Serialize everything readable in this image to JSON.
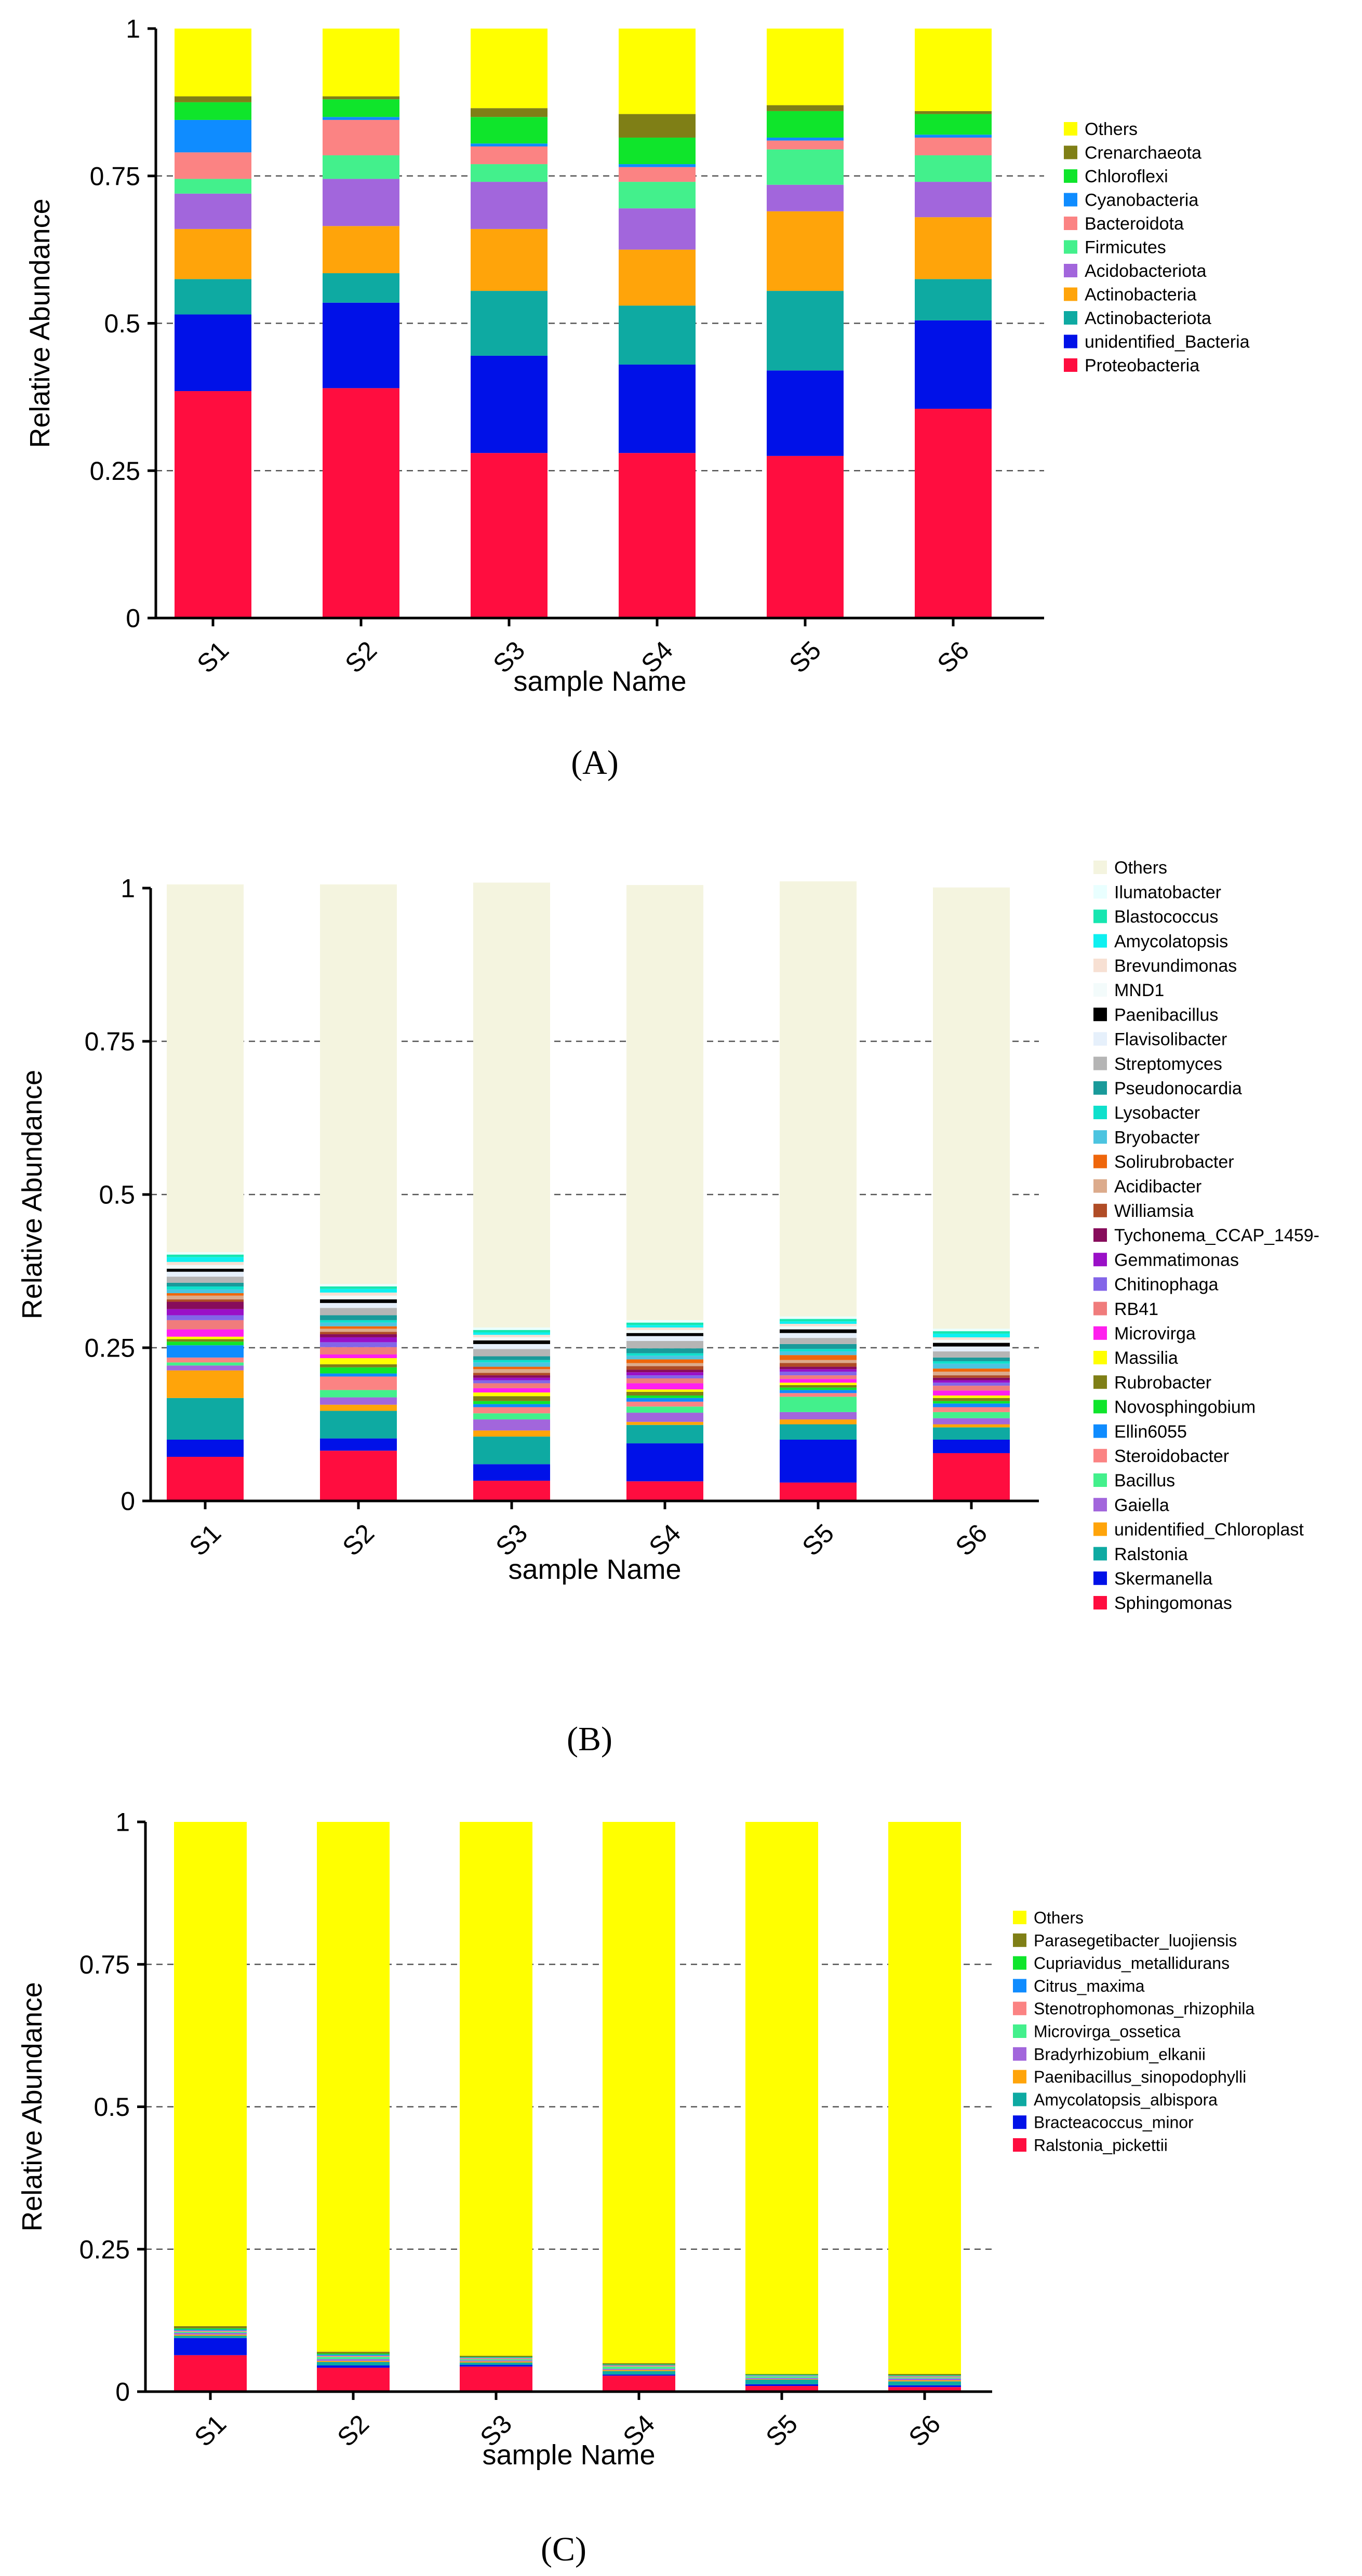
{
  "chart_data": [
    {
      "id": "A",
      "type": "bar",
      "stacked": true,
      "panel_label": "(A)",
      "panel_letter": "A",
      "xlabel": "sample Name",
      "ylabel": "Relative Abundance",
      "ylim": [
        0,
        1
      ],
      "yticks": [
        0,
        0.25,
        0.5,
        0.75,
        1
      ],
      "ytick_labels": [
        "0",
        "0.25",
        "0.5",
        "0.75",
        "1"
      ],
      "grid": "dashed horizontal at 0.25, 0.5, 0.75",
      "legend_position": "right",
      "categories": [
        "S1",
        "S2",
        "S3",
        "S4",
        "S5",
        "S6"
      ],
      "series": [
        {
          "name": "Proteobacteria",
          "color": "#ff0d3f",
          "values": [
            0.385,
            0.39,
            0.28,
            0.28,
            0.275,
            0.355
          ]
        },
        {
          "name": "unidentified_Bacteria",
          "color": "#0011e8",
          "values": [
            0.13,
            0.145,
            0.165,
            0.15,
            0.145,
            0.15
          ]
        },
        {
          "name": "Actinobacteriota",
          "color": "#0eaaa2",
          "values": [
            0.06,
            0.05,
            0.11,
            0.1,
            0.135,
            0.07
          ]
        },
        {
          "name": "Actinobacteria",
          "color": "#ffa40a",
          "values": [
            0.085,
            0.08,
            0.105,
            0.095,
            0.135,
            0.105
          ]
        },
        {
          "name": "Acidobacteriota",
          "color": "#a266dc",
          "values": [
            0.06,
            0.08,
            0.08,
            0.07,
            0.045,
            0.06
          ]
        },
        {
          "name": "Firmicutes",
          "color": "#43f08c",
          "values": [
            0.025,
            0.04,
            0.03,
            0.045,
            0.06,
            0.045
          ]
        },
        {
          "name": "Bacteroidota",
          "color": "#fb8383",
          "values": [
            0.045,
            0.06,
            0.03,
            0.025,
            0.015,
            0.03
          ]
        },
        {
          "name": "Cyanobacteria",
          "color": "#0f8cff",
          "values": [
            0.055,
            0.005,
            0.005,
            0.005,
            0.005,
            0.005
          ]
        },
        {
          "name": "Chloroflexi",
          "color": "#0fe52b",
          "values": [
            0.03,
            0.03,
            0.045,
            0.045,
            0.045,
            0.035
          ]
        },
        {
          "name": "Crenarchaeota",
          "color": "#7f7f16",
          "values": [
            0.01,
            0.005,
            0.015,
            0.04,
            0.01,
            0.005
          ]
        },
        {
          "name": "Others",
          "color": "#ffff00",
          "values": [
            0.115,
            0.115,
            0.135,
            0.145,
            0.13,
            0.14
          ]
        }
      ]
    },
    {
      "id": "B",
      "type": "bar",
      "stacked": true,
      "panel_label": "(B)",
      "panel_letter": "B",
      "xlabel": "sample Name",
      "ylabel": "Relative Abundance",
      "ylim": [
        0,
        1
      ],
      "yticks": [
        0,
        0.25,
        0.5,
        0.75,
        1
      ],
      "ytick_labels": [
        "0",
        "0.25",
        "0.5",
        "0.75",
        "1"
      ],
      "grid": "dashed horizontal at 0.25, 0.5, 0.75",
      "legend_position": "right",
      "categories": [
        "S1",
        "S2",
        "S3",
        "S4",
        "S5",
        "S6"
      ],
      "series": [
        {
          "name": "Sphingomonas",
          "color": "#ff0d3f",
          "values": [
            0.072,
            0.082,
            0.033,
            0.032,
            0.03,
            0.078
          ]
        },
        {
          "name": "Skermanella",
          "color": "#0011e8",
          "values": [
            0.028,
            0.02,
            0.027,
            0.062,
            0.07,
            0.022
          ]
        },
        {
          "name": "Ralstonia",
          "color": "#0eaaa2",
          "values": [
            0.068,
            0.045,
            0.045,
            0.03,
            0.025,
            0.02
          ]
        },
        {
          "name": "unidentified_Chloroplast",
          "color": "#ffa40a",
          "values": [
            0.045,
            0.01,
            0.01,
            0.005,
            0.008,
            0.005
          ]
        },
        {
          "name": "Gaiella",
          "color": "#a266dc",
          "values": [
            0.008,
            0.012,
            0.018,
            0.015,
            0.012,
            0.01
          ]
        },
        {
          "name": "Bacillus",
          "color": "#43f08c",
          "values": [
            0.005,
            0.012,
            0.01,
            0.01,
            0.025,
            0.01
          ]
        },
        {
          "name": "Steroidobacter",
          "color": "#fb8383",
          "values": [
            0.008,
            0.022,
            0.01,
            0.008,
            0.006,
            0.008
          ]
        },
        {
          "name": "Ellin6055",
          "color": "#0f8cff",
          "values": [
            0.02,
            0.005,
            0.005,
            0.006,
            0.005,
            0.006
          ]
        },
        {
          "name": "Novosphingobium",
          "color": "#0fe52b",
          "values": [
            0.006,
            0.01,
            0.005,
            0.004,
            0.004,
            0.004
          ]
        },
        {
          "name": "Rubrobacter",
          "color": "#7f7f16",
          "values": [
            0.004,
            0.005,
            0.008,
            0.006,
            0.004,
            0.005
          ]
        },
        {
          "name": "Massilia",
          "color": "#ffff00",
          "values": [
            0.004,
            0.01,
            0.006,
            0.004,
            0.004,
            0.004
          ]
        },
        {
          "name": "Microvirga",
          "color": "#ff1fee",
          "values": [
            0.012,
            0.006,
            0.007,
            0.01,
            0.006,
            0.008
          ]
        },
        {
          "name": "RB41",
          "color": "#f07c7c",
          "values": [
            0.015,
            0.012,
            0.008,
            0.008,
            0.006,
            0.008
          ]
        },
        {
          "name": "Chitinophaga",
          "color": "#8365e8",
          "values": [
            0.008,
            0.008,
            0.005,
            0.005,
            0.006,
            0.005
          ]
        },
        {
          "name": "Gemmatimonas",
          "color": "#9a10c7",
          "values": [
            0.01,
            0.008,
            0.004,
            0.005,
            0.004,
            0.004
          ]
        },
        {
          "name": "Tychonema_CCAP_1459-",
          "color": "#870c5b",
          "values": [
            0.012,
            0.005,
            0.004,
            0.004,
            0.004,
            0.004
          ]
        },
        {
          "name": "Williamsia",
          "color": "#b04c26",
          "values": [
            0.004,
            0.004,
            0.004,
            0.006,
            0.006,
            0.004
          ]
        },
        {
          "name": "Acidibacter",
          "color": "#dcab8c",
          "values": [
            0.006,
            0.005,
            0.006,
            0.005,
            0.005,
            0.006
          ]
        },
        {
          "name": "Solirubrobacter",
          "color": "#ef660b",
          "values": [
            0.004,
            0.004,
            0.004,
            0.006,
            0.008,
            0.005
          ]
        },
        {
          "name": "Bryobacter",
          "color": "#4cc4e0",
          "values": [
            0.006,
            0.006,
            0.007,
            0.006,
            0.006,
            0.008
          ]
        },
        {
          "name": "Lysobacter",
          "color": "#0fe0cc",
          "values": [
            0.005,
            0.004,
            0.004,
            0.004,
            0.004,
            0.004
          ]
        },
        {
          "name": "Pseudonocardia",
          "color": "#199a9a",
          "values": [
            0.006,
            0.008,
            0.006,
            0.008,
            0.008,
            0.006
          ]
        },
        {
          "name": "Streptomyces",
          "color": "#b5b5b5",
          "values": [
            0.01,
            0.012,
            0.012,
            0.012,
            0.01,
            0.01
          ]
        },
        {
          "name": "Flavisolibacter",
          "color": "#e6f0fb",
          "values": [
            0.008,
            0.008,
            0.008,
            0.008,
            0.008,
            0.008
          ]
        },
        {
          "name": "Paenibacillus",
          "color": "#000000",
          "values": [
            0.005,
            0.006,
            0.006,
            0.005,
            0.006,
            0.006
          ]
        },
        {
          "name": "MND1",
          "color": "#f3fbfb",
          "values": [
            0.006,
            0.006,
            0.005,
            0.005,
            0.005,
            0.005
          ]
        },
        {
          "name": "Brevundimonas",
          "color": "#f7e0d3",
          "values": [
            0.005,
            0.005,
            0.004,
            0.004,
            0.004,
            0.004
          ]
        },
        {
          "name": "Amycolatopsis",
          "color": "#0ff0f0",
          "values": [
            0.008,
            0.006,
            0.004,
            0.004,
            0.004,
            0.006
          ]
        },
        {
          "name": "Blastococcus",
          "color": "#16e6b0",
          "values": [
            0.004,
            0.004,
            0.004,
            0.004,
            0.004,
            0.004
          ]
        },
        {
          "name": "Ilumatobacter",
          "color": "#e9ffff",
          "values": [
            0.004,
            0.004,
            0.004,
            0.004,
            0.004,
            0.004
          ]
        },
        {
          "name": "Others",
          "color": "#f4f4df",
          "values": [
            0.6,
            0.652,
            0.726,
            0.71,
            0.71,
            0.72
          ]
        }
      ]
    },
    {
      "id": "C",
      "type": "bar",
      "stacked": true,
      "panel_label": "(C)",
      "panel_letter": "C",
      "xlabel": "sample Name",
      "ylabel": "Relative Abundance",
      "ylim": [
        0,
        1
      ],
      "yticks": [
        0,
        0.25,
        0.5,
        0.75,
        1
      ],
      "ytick_labels": [
        "0",
        "0.25",
        "0.5",
        "0.75",
        "1"
      ],
      "grid": "dashed horizontal at 0.25, 0.5, 0.75",
      "legend_position": "right",
      "categories": [
        "S1",
        "S2",
        "S3",
        "S4",
        "S5",
        "S6"
      ],
      "series": [
        {
          "name": "Ralstonia_pickettii",
          "color": "#ff0d3f",
          "values": [
            0.064,
            0.042,
            0.044,
            0.028,
            0.01,
            0.008
          ]
        },
        {
          "name": "Bracteacoccus_minor",
          "color": "#0011e8",
          "values": [
            0.03,
            0.004,
            0.003,
            0.002,
            0.003,
            0.003
          ]
        },
        {
          "name": "Amycolatopsis_albispora",
          "color": "#0eaaa2",
          "values": [
            0.004,
            0.006,
            0.004,
            0.006,
            0.008,
            0.007
          ]
        },
        {
          "name": "Paenibacillus_sinopodophylli",
          "color": "#ffa40a",
          "values": [
            0.002,
            0.002,
            0.002,
            0.002,
            0.001,
            0.002
          ]
        },
        {
          "name": "Bradyrhizobium_elkanii",
          "color": "#a266dc",
          "values": [
            0.003,
            0.003,
            0.002,
            0.002,
            0.002,
            0.003
          ]
        },
        {
          "name": "Microvirga_ossetica",
          "color": "#43f08c",
          "values": [
            0.002,
            0.004,
            0.002,
            0.004,
            0.003,
            0.002
          ]
        },
        {
          "name": "Stenotrophomonas_rhizophila",
          "color": "#fb8383",
          "values": [
            0.002,
            0.002,
            0.002,
            0.002,
            0.001,
            0.002
          ]
        },
        {
          "name": "Citrus_maxima",
          "color": "#0f8cff",
          "values": [
            0.002,
            0.002,
            0.001,
            0.001,
            0.001,
            0.001
          ]
        },
        {
          "name": "Cupriavidus_metallidurans",
          "color": "#0fe52b",
          "values": [
            0.002,
            0.002,
            0.001,
            0.001,
            0.001,
            0.001
          ]
        },
        {
          "name": "Parasegetibacter_luojiensis",
          "color": "#7f7f16",
          "values": [
            0.004,
            0.003,
            0.002,
            0.002,
            0.001,
            0.002
          ]
        },
        {
          "name": "Others",
          "color": "#ffff00",
          "values": [
            0.885,
            0.93,
            0.937,
            0.95,
            0.969,
            0.969
          ]
        }
      ]
    }
  ]
}
